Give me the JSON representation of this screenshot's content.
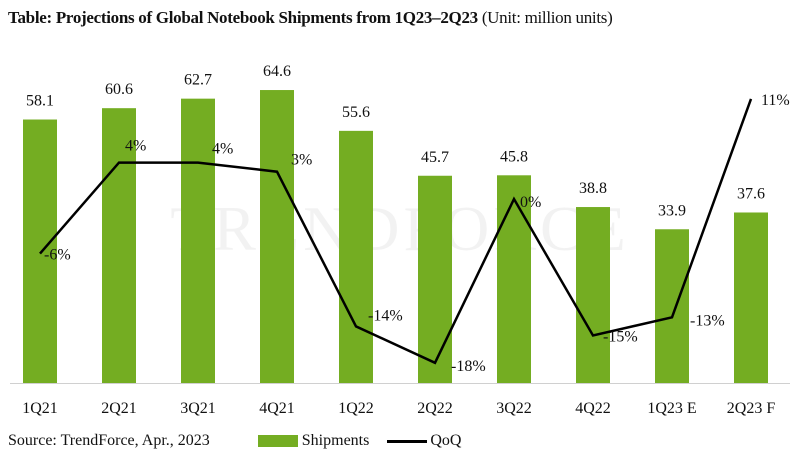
{
  "title": {
    "bold": "Table: Projections of Global Notebook Shipments from 1Q23–2Q23",
    "unit": "(Unit: million units)"
  },
  "source": "Source: TrendForce, Apr., 2023",
  "watermark": "TRENDFORCE",
  "colors": {
    "bar": "#74ad22",
    "line": "#000000"
  },
  "chart_data": {
    "type": "bar+line",
    "categories": [
      "1Q21",
      "2Q21",
      "3Q21",
      "4Q21",
      "1Q22",
      "2Q22",
      "3Q22",
      "4Q22",
      "1Q23 E",
      "2Q23 F"
    ],
    "series": [
      {
        "name": "Shipments",
        "type": "bar",
        "values": [
          58.1,
          60.6,
          62.7,
          64.6,
          55.6,
          45.7,
          45.8,
          38.8,
          33.9,
          37.6
        ],
        "labels": [
          "58.1",
          "60.6",
          "62.7",
          "64.6",
          "55.6",
          "45.7",
          "45.8",
          "38.8",
          "33.9",
          "37.6"
        ]
      },
      {
        "name": "QoQ",
        "type": "line",
        "axis": "secondary",
        "values": [
          -6,
          4,
          4,
          3,
          -14,
          -18,
          0,
          -15,
          -13,
          11
        ],
        "labels": [
          "-6%",
          "4%",
          "4%",
          "3%",
          "-14%",
          "-18%",
          "0%",
          "-15%",
          "-13%",
          "11%"
        ]
      }
    ],
    "legend": {
      "position": "bottom",
      "entries": [
        "Shipments",
        "QoQ"
      ]
    },
    "grid": false
  }
}
